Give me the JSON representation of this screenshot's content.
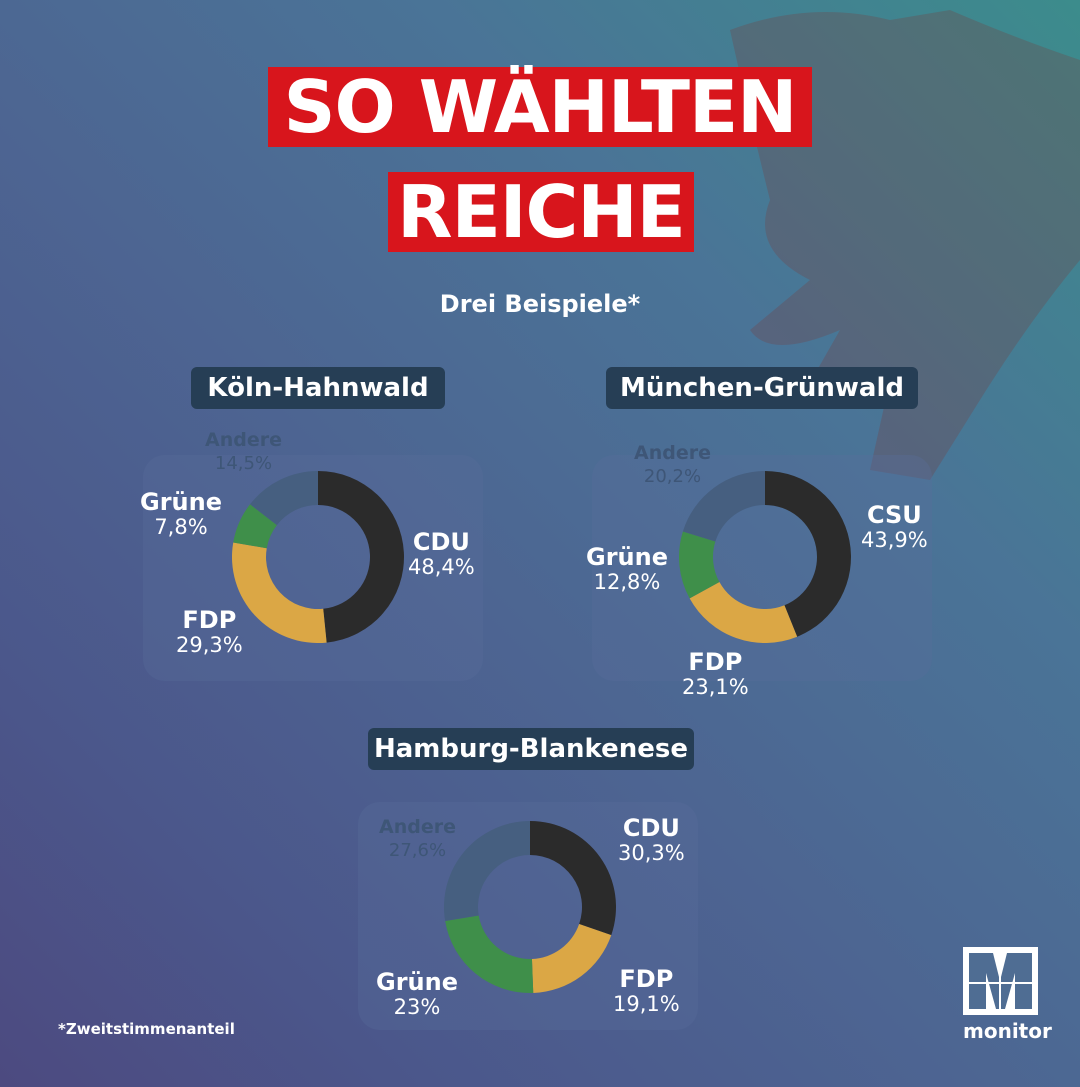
{
  "title_line1": "SO WÄHLTEN",
  "title_line2": "REICHE",
  "subtitle": "Drei Beispiele*",
  "footnote": "*Zweitstimmenanteil",
  "logo_text": "monitor",
  "colors": {
    "CDU": "#2b2b2b",
    "CSU": "#2b2b2b",
    "FDP": "#dba745",
    "Grüne": "#3f8f4a",
    "Andere": "#465f80",
    "title_red": "#d8151c"
  },
  "chart_data": [
    {
      "type": "pie",
      "title": "Köln-Hahnwald",
      "categories": [
        "CDU",
        "FDP",
        "Grüne",
        "Andere"
      ],
      "values": [
        48.4,
        29.3,
        7.8,
        14.5
      ],
      "labels": [
        "48,4%",
        "29,3%",
        "7,8%",
        "14,5%"
      ]
    },
    {
      "type": "pie",
      "title": "München-Grünwald",
      "categories": [
        "CSU",
        "FDP",
        "Grüne",
        "Andere"
      ],
      "values": [
        43.9,
        23.1,
        12.8,
        20.2
      ],
      "labels": [
        "43,9%",
        "23,1%",
        "12,8%",
        "20,2%"
      ]
    },
    {
      "type": "pie",
      "title": "Hamburg-Blankenese",
      "categories": [
        "CDU",
        "FDP",
        "Grüne",
        "Andere"
      ],
      "values": [
        30.3,
        19.1,
        23,
        27.6
      ],
      "labels": [
        "30,3%",
        "19,1%",
        "23%",
        "27,6%"
      ]
    }
  ]
}
